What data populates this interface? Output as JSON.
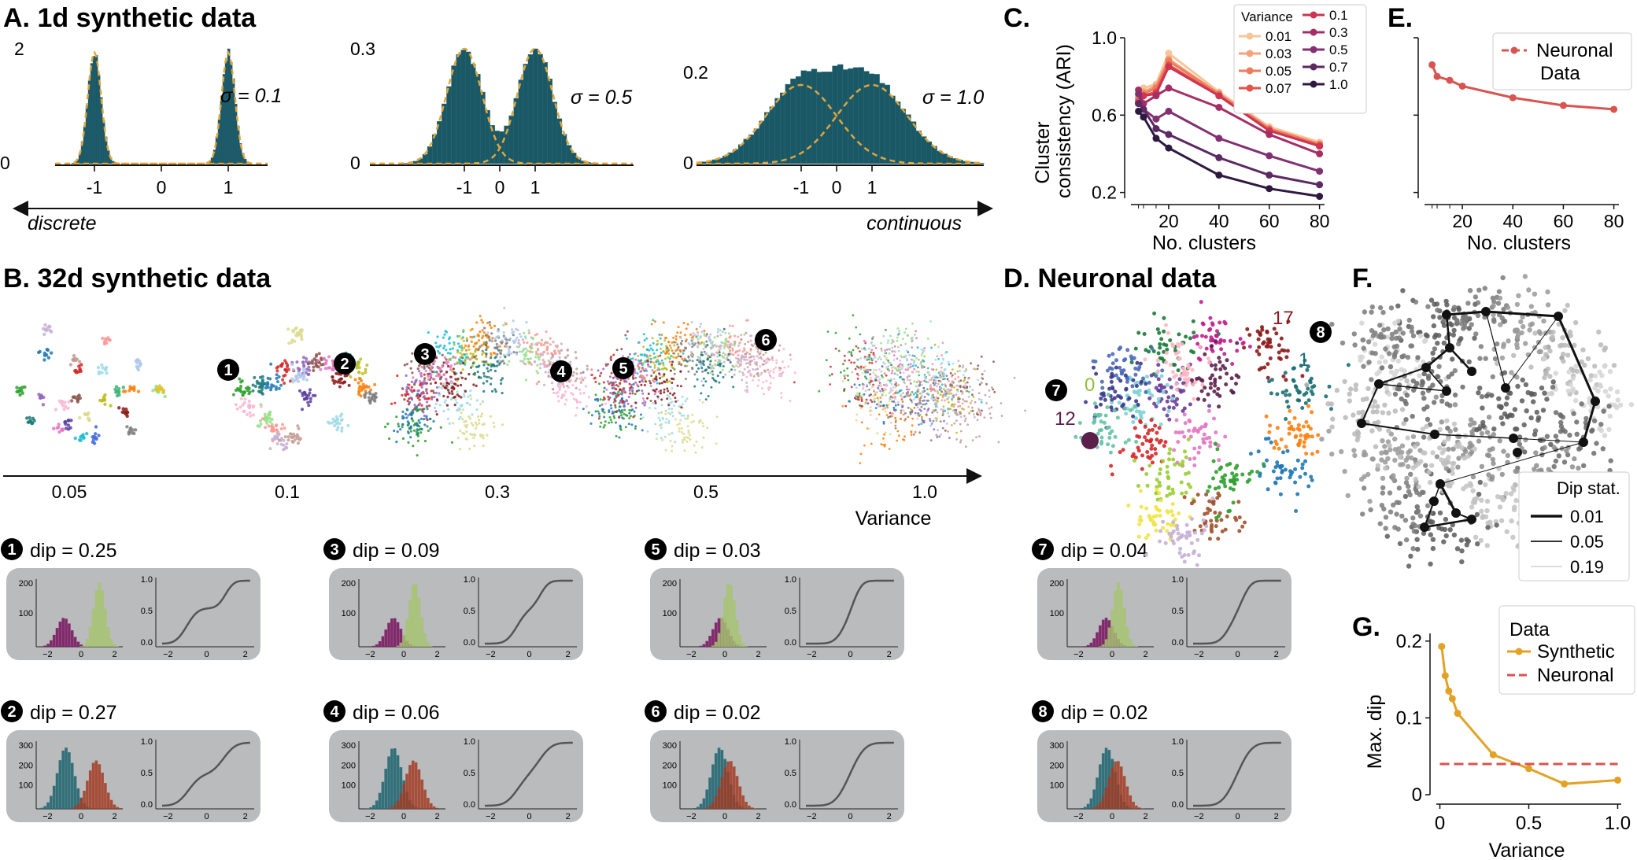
{
  "panel_titles": {
    "A": "A. 1d synthetic data",
    "B": "B. 32d synthetic data",
    "C": "C.",
    "D": "D. Neuronal data",
    "E": "E.",
    "F": "F.",
    "G": "G."
  },
  "colors": {
    "hist": "#1b5866",
    "gauss": "#e0a53a",
    "panel_bg": "#b9bbbd",
    "purple_hist": "#7d2367",
    "green_hist": "#a6c46d",
    "teal_hist": "#2b6b76",
    "red_hist": "#a23b22",
    "neuronal": "#d9534f",
    "synthetic_g": "#e2a226"
  },
  "panelA": {
    "left_label": "discrete",
    "right_label": "continuous",
    "subplots": [
      {
        "sigma": "σ = 0.1",
        "ytop": "2",
        "ybot": "0",
        "xticks": [
          "-1",
          "0",
          "1"
        ]
      },
      {
        "sigma": "σ = 0.5",
        "ytop": "0.3",
        "ybot": "0",
        "xticks": [
          "-1",
          "0",
          "1"
        ]
      },
      {
        "sigma": "σ = 1.0",
        "ytop": "0.2",
        "ybot": "0",
        "xticks": [
          "-1",
          "0",
          "1"
        ]
      }
    ]
  },
  "panelB": {
    "variance_ticks": [
      "0.05",
      "0.1",
      "0.3",
      "0.5",
      "1.0"
    ],
    "axis_label": "Variance",
    "markers": [
      "1",
      "2",
      "3",
      "4",
      "5",
      "6"
    ]
  },
  "dip_panels": [
    {
      "num": "1",
      "label": "dip = 0.25",
      "colors": [
        "purple",
        "green"
      ],
      "yticks": [
        "200",
        "100"
      ]
    },
    {
      "num": "3",
      "label": "dip = 0.09",
      "colors": [
        "purple",
        "green"
      ],
      "yticks": [
        "200",
        "100"
      ]
    },
    {
      "num": "5",
      "label": "dip = 0.03",
      "colors": [
        "purple",
        "green"
      ],
      "yticks": [
        "200",
        "100"
      ]
    },
    {
      "num": "7",
      "label": "dip = 0.04",
      "colors": [
        "purple",
        "green"
      ],
      "yticks": [
        "200",
        "100"
      ]
    },
    {
      "num": "2",
      "label": "dip = 0.27",
      "colors": [
        "teal",
        "red"
      ],
      "yticks": [
        "300",
        "200",
        "100"
      ]
    },
    {
      "num": "4",
      "label": "dip = 0.06",
      "colors": [
        "teal",
        "red"
      ],
      "yticks": [
        "300",
        "200",
        "100"
      ]
    },
    {
      "num": "6",
      "label": "dip = 0.02",
      "colors": [
        "teal",
        "red"
      ],
      "yticks": [
        "300",
        "200",
        "100"
      ]
    },
    {
      "num": "8",
      "label": "dip = 0.02",
      "colors": [
        "teal",
        "red"
      ],
      "yticks": [
        "300",
        "200",
        "100"
      ]
    }
  ],
  "dip_axes": {
    "xticks": [
      "−2",
      "0",
      "2"
    ],
    "cdf_yticks": [
      "1.0",
      "0.5",
      "0.0"
    ]
  },
  "panelD": {
    "cluster_labels": [
      "17",
      "1",
      "0",
      "12"
    ],
    "markers": [
      "7",
      "8"
    ]
  },
  "panelF": {
    "legend_title": "Dip stat.",
    "legend": [
      "0.01",
      "0.05",
      "0.19"
    ]
  },
  "chart_data": [
    {
      "type": "line",
      "panel": "C",
      "xlabel": "No. clusters",
      "ylabel_line1": "Cluster",
      "ylabel_line2": "consistency (ARI)",
      "xlim": [
        5,
        82
      ],
      "ylim": [
        0.17,
        1.0
      ],
      "xticks": [
        "20",
        "40",
        "60",
        "80"
      ],
      "yticks": [
        "1.0",
        "0.6",
        "0.2"
      ],
      "legend_title": "Variance",
      "x": [
        8,
        10,
        15,
        20,
        40,
        60,
        80
      ],
      "series": [
        {
          "name": "0.01",
          "color": "#f6c59b",
          "values": [
            0.7,
            0.74,
            0.76,
            0.92,
            0.72,
            0.54,
            0.46
          ]
        },
        {
          "name": "0.03",
          "color": "#f3a37a",
          "values": [
            0.69,
            0.72,
            0.75,
            0.89,
            0.71,
            0.53,
            0.45
          ]
        },
        {
          "name": "0.05",
          "color": "#ed7b5c",
          "values": [
            0.68,
            0.71,
            0.74,
            0.88,
            0.71,
            0.53,
            0.45
          ]
        },
        {
          "name": "0.07",
          "color": "#e4524a",
          "values": [
            0.67,
            0.7,
            0.72,
            0.86,
            0.7,
            0.52,
            0.44
          ]
        },
        {
          "name": "0.1",
          "color": "#cd3553",
          "values": [
            0.66,
            0.7,
            0.71,
            0.85,
            0.7,
            0.52,
            0.44
          ]
        },
        {
          "name": "0.3",
          "color": "#a52f65",
          "values": [
            0.73,
            0.66,
            0.7,
            0.74,
            0.64,
            0.5,
            0.4
          ]
        },
        {
          "name": "0.5",
          "color": "#823073",
          "values": [
            0.71,
            0.63,
            0.58,
            0.62,
            0.48,
            0.39,
            0.31
          ]
        },
        {
          "name": "0.7",
          "color": "#5c2a63",
          "values": [
            0.66,
            0.63,
            0.53,
            0.5,
            0.38,
            0.29,
            0.24
          ]
        },
        {
          "name": "1.0",
          "color": "#2e1a40",
          "values": [
            0.62,
            0.59,
            0.48,
            0.43,
            0.29,
            0.22,
            0.18
          ]
        }
      ]
    },
    {
      "type": "line",
      "panel": "E",
      "xlabel": "No. clusters",
      "xlim": [
        5,
        82
      ],
      "ylim": [
        0.17,
        1.0
      ],
      "xticks": [
        "20",
        "40",
        "60",
        "80"
      ],
      "series": [
        {
          "name": "Neuronal Data",
          "color": "#d9534f",
          "x": [
            8,
            10,
            15,
            20,
            40,
            60,
            80
          ],
          "values": [
            0.86,
            0.8,
            0.78,
            0.75,
            0.69,
            0.65,
            0.63
          ]
        }
      ]
    },
    {
      "type": "line",
      "panel": "G",
      "xlabel": "Variance",
      "ylabel": "Max. dip",
      "xlim": [
        -0.02,
        1.02
      ],
      "ylim": [
        0,
        0.21
      ],
      "xticks": [
        "0",
        "0.5",
        "1.0"
      ],
      "yticks": [
        "0.2",
        "0.1",
        "0"
      ],
      "legend_title": "Data",
      "series": [
        {
          "name": "Synthetic",
          "color": "#e2a226",
          "x": [
            0.01,
            0.03,
            0.05,
            0.07,
            0.1,
            0.3,
            0.5,
            0.7,
            1.0
          ],
          "values": [
            0.193,
            0.155,
            0.135,
            0.125,
            0.106,
            0.052,
            0.034,
            0.014,
            0.019
          ]
        },
        {
          "name": "Neuronal",
          "color": "#d9534f",
          "dashed": true,
          "x": [
            0.0,
            1.0
          ],
          "values": [
            0.04,
            0.04
          ]
        }
      ]
    }
  ]
}
